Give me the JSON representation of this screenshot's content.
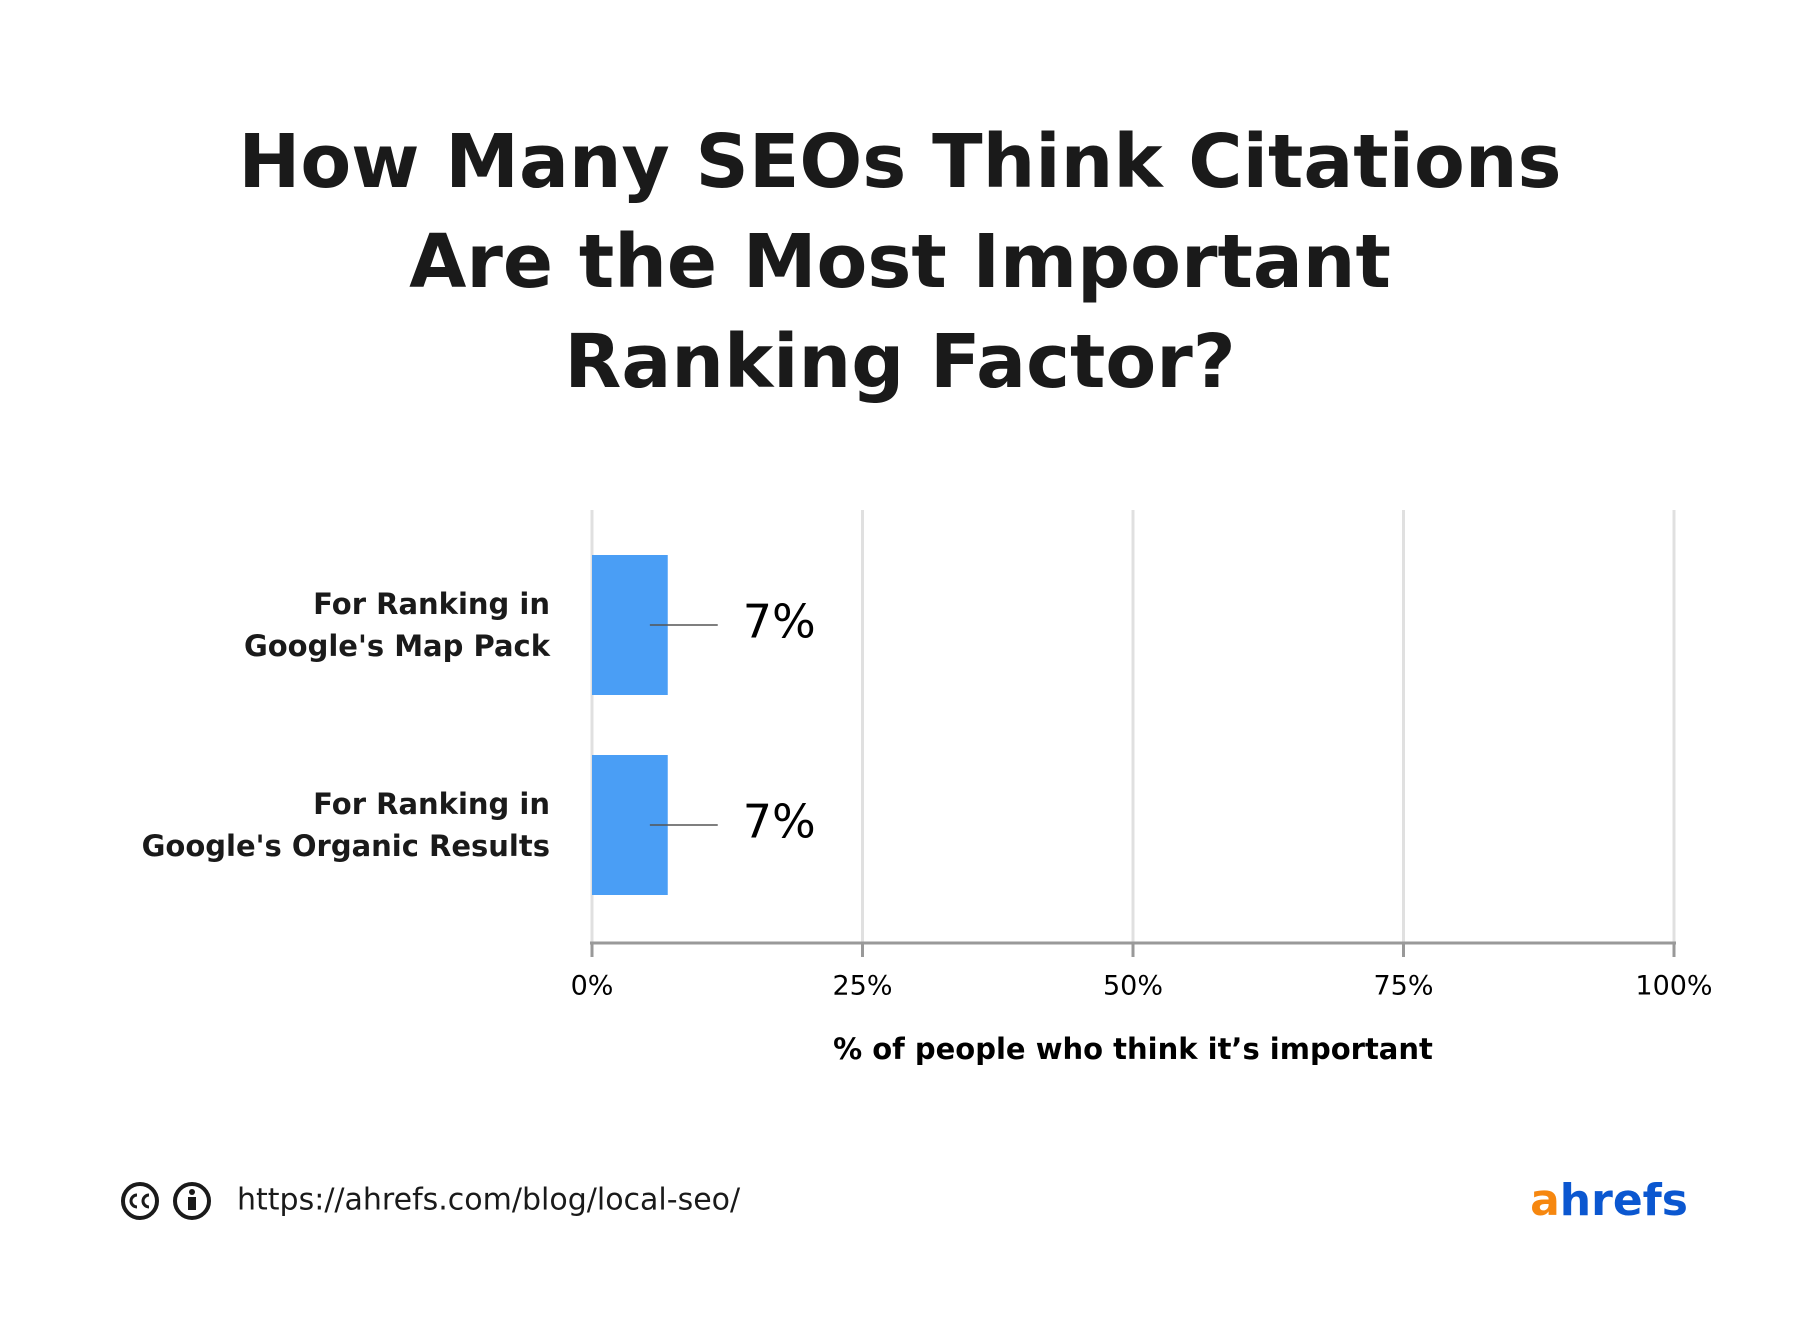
{
  "chart_data": {
    "type": "barh",
    "title": "How Many SEOs Think Citations\nAre the Most Important\nRanking Factor?",
    "categories": [
      "For Ranking in\nGoogle's Map Pack",
      "For Ranking in\nGoogle's Organic Results"
    ],
    "values": [
      7,
      7
    ],
    "value_labels": [
      "7%",
      "7%"
    ],
    "color": "#4a9ef5",
    "xlim": [
      0,
      100
    ],
    "xticks": [
      {
        "value": 0,
        "label": "0%"
      },
      {
        "value": 25,
        "label": "25%"
      },
      {
        "value": 50,
        "label": "50%"
      },
      {
        "value": 75,
        "label": "75%"
      },
      {
        "value": 100,
        "label": "100%"
      }
    ],
    "xlabel": "% of people who think it’s important",
    "grid": true
  },
  "footer": {
    "url": "https://ahrefs.com/blog/local-seo/",
    "logo": {
      "a": "a",
      "rest": "hrefs"
    }
  }
}
